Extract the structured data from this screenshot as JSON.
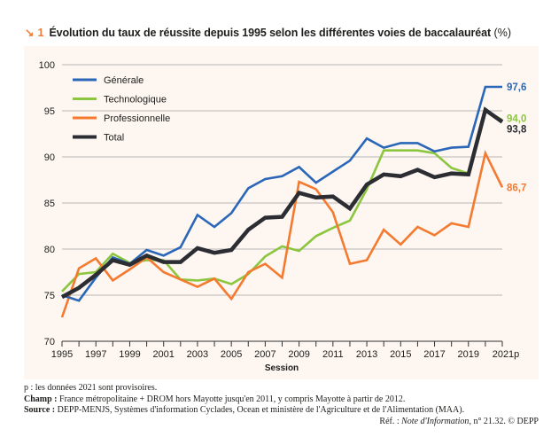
{
  "header": {
    "icon": "↘",
    "number": "1",
    "title": "Évolution du taux de réussite depuis 1995 selon les différentes voies de baccalauréat",
    "unit": "(%)"
  },
  "chart_data": {
    "type": "line",
    "title": "Évolution du taux de réussite depuis 1995 selon les différentes voies de baccalauréat (%)",
    "xlabel": "Session",
    "ylabel": "",
    "ylim": [
      70,
      100
    ],
    "yticks": [
      70,
      75,
      80,
      85,
      90,
      95,
      100
    ],
    "grid": true,
    "legend": "top-left",
    "x": [
      1995,
      1996,
      1997,
      1998,
      1999,
      2000,
      2001,
      2002,
      2003,
      2004,
      2005,
      2006,
      2007,
      2008,
      2009,
      2010,
      2011,
      2012,
      2013,
      2014,
      2015,
      2016,
      2017,
      2018,
      2019,
      2020,
      2021
    ],
    "xtick_labels": [
      "1995",
      "1997",
      "1999",
      "2001",
      "2003",
      "2005",
      "2007",
      "2009",
      "2011",
      "2013",
      "2015",
      "2017",
      "2019",
      "2021p"
    ],
    "xtick_years": [
      1995,
      1997,
      1999,
      2001,
      2003,
      2005,
      2007,
      2009,
      2011,
      2013,
      2015,
      2017,
      2019,
      2021
    ],
    "series": [
      {
        "name": "Générale",
        "color": "#2a67b8",
        "values": [
          75.0,
          74.4,
          76.9,
          79.1,
          78.4,
          79.9,
          79.3,
          80.2,
          83.7,
          82.4,
          83.9,
          86.6,
          87.6,
          87.9,
          88.9,
          87.2,
          88.4,
          89.6,
          92.0,
          91.0,
          91.5,
          91.5,
          90.6,
          91.0,
          91.1,
          97.6,
          97.6
        ],
        "end_label": "97,6"
      },
      {
        "name": "Technologique",
        "color": "#8cc63f",
        "values": [
          75.4,
          77.3,
          77.5,
          79.5,
          78.5,
          78.8,
          78.8,
          76.7,
          76.6,
          76.8,
          76.2,
          77.3,
          79.2,
          80.3,
          79.8,
          81.4,
          82.3,
          83.1,
          86.5,
          90.7,
          90.7,
          90.7,
          90.4,
          88.8,
          88.2,
          95.0,
          94.0
        ],
        "end_label": "94,0"
      },
      {
        "name": "Professionnelle",
        "color": "#f47a30",
        "values": [
          72.6,
          77.9,
          79.0,
          76.6,
          77.8,
          79.1,
          77.5,
          76.7,
          75.9,
          76.8,
          74.6,
          77.5,
          78.4,
          76.9,
          87.3,
          86.5,
          84.0,
          78.4,
          78.8,
          82.1,
          80.5,
          82.4,
          81.5,
          82.8,
          82.4,
          90.4,
          86.7
        ],
        "end_label": "86,7"
      },
      {
        "name": "Total",
        "color": "#2b2d33",
        "values": [
          74.8,
          75.8,
          77.2,
          78.8,
          78.3,
          79.3,
          78.6,
          78.6,
          80.1,
          79.6,
          79.9,
          82.1,
          83.4,
          83.5,
          86.1,
          85.6,
          85.7,
          84.4,
          87.0,
          88.1,
          87.9,
          88.6,
          87.8,
          88.2,
          88.1,
          95.1,
          93.8
        ],
        "end_label": "93,8"
      }
    ]
  },
  "footer": {
    "note_p": "p : les données 2021 sont provisoires.",
    "champ_label": "Champ :",
    "champ_text": " France métropolitaine + DROM hors Mayotte jusqu'en 2011, y compris Mayotte à partir de 2012.",
    "source_label": "Source :",
    "source_text": " DEPP-MENJS, Systèmes d'information Cyclades, Ocean et ministère de l'Agriculture et de l'Alimentation (MAA).",
    "ref_prefix": "Réf. : ",
    "ref_italic": "Note d'Information",
    "ref_suffix": ", n° 21.32. © DEPP"
  }
}
